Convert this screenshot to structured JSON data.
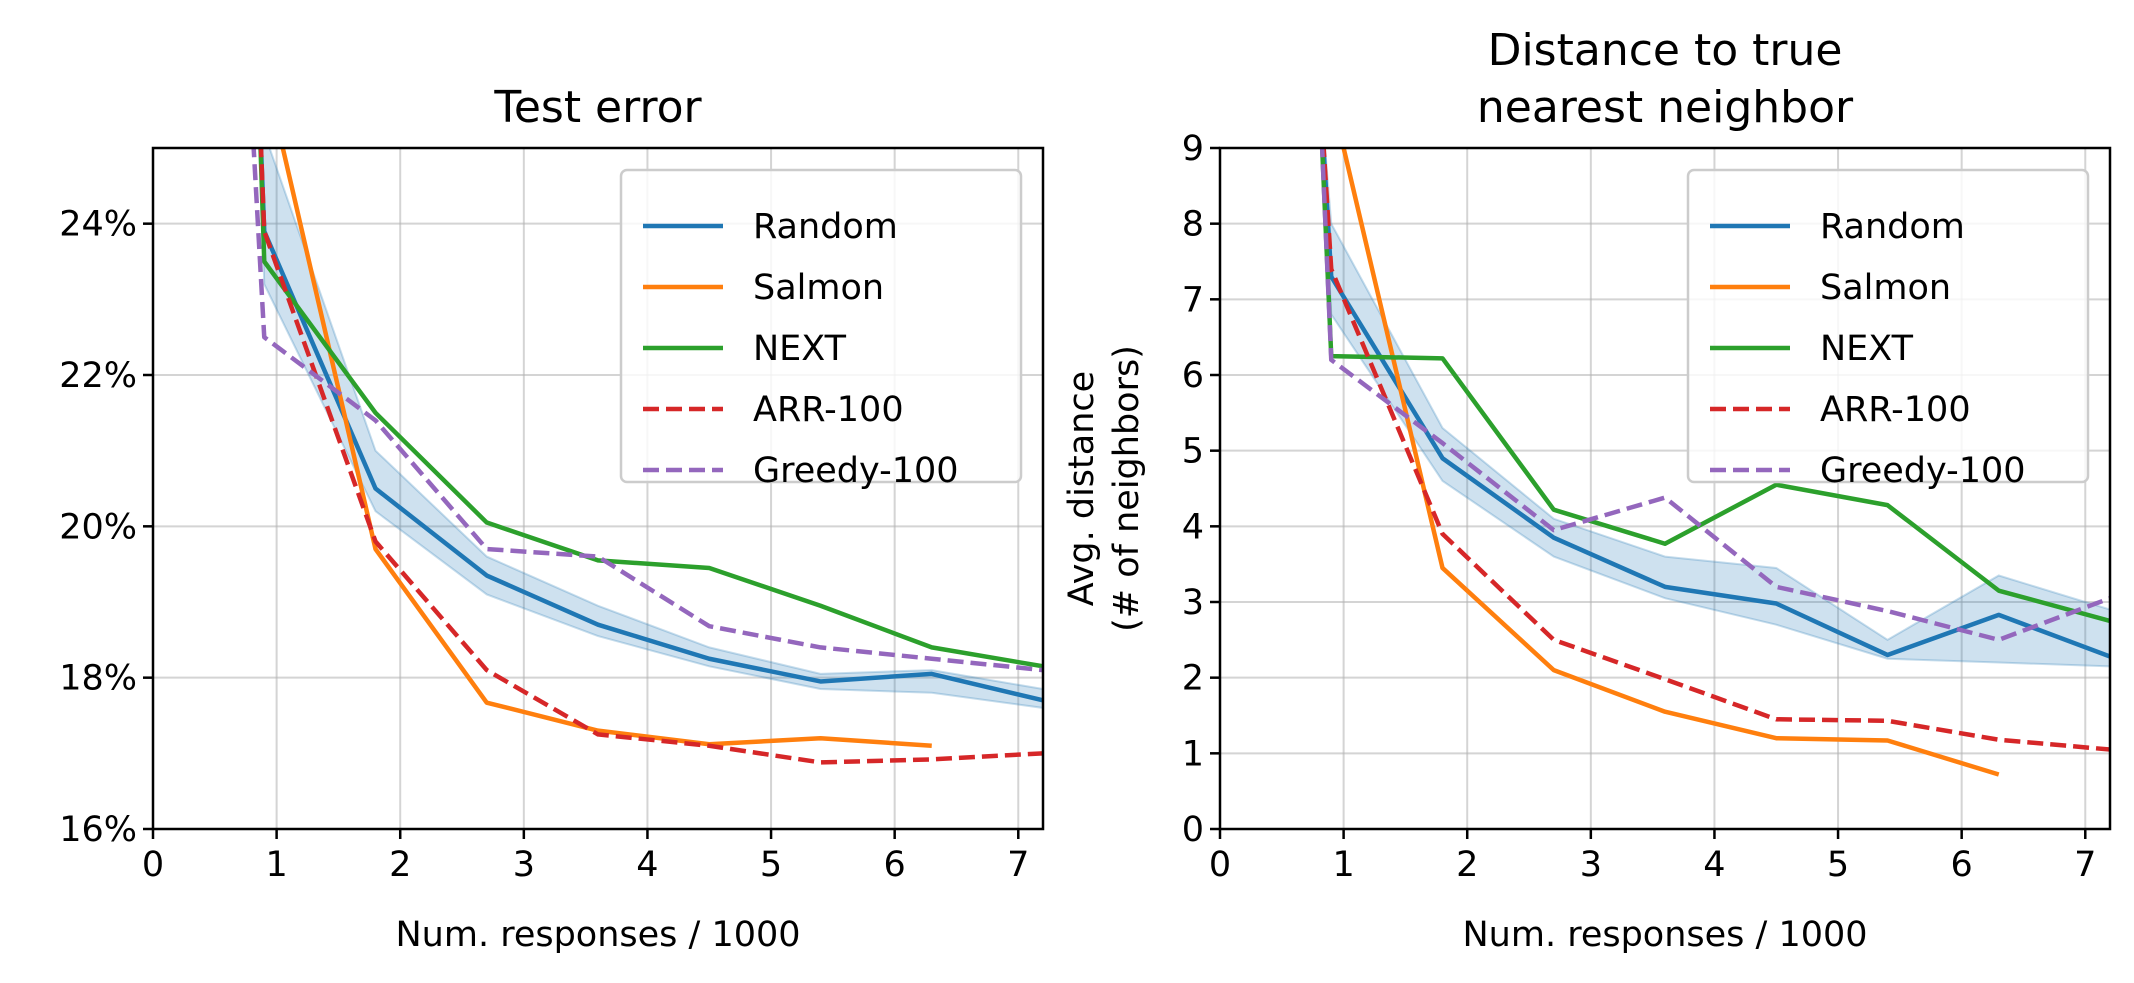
{
  "chart_data": [
    {
      "type": "line",
      "title": "Test error",
      "xlabel": "Num. responses / 1000",
      "ylabel": "",
      "xlim": [
        0,
        7.2
      ],
      "ylim": [
        16,
        25
      ],
      "xticks": [
        0,
        1,
        2,
        3,
        4,
        5,
        6,
        7
      ],
      "yticks": [
        16,
        18,
        20,
        22,
        24
      ],
      "ytick_labels": [
        "16%",
        "18%",
        "20%",
        "22%",
        "24%"
      ],
      "grid": true,
      "legend_position": "top-right",
      "series": [
        {
          "name": "Random",
          "color": "#1f77b4",
          "dash": "solid",
          "x": [
            0.85,
            0.9,
            1.8,
            2.7,
            3.6,
            4.5,
            5.4,
            6.3,
            7.2
          ],
          "y": [
            26.0,
            23.9,
            20.5,
            19.35,
            18.7,
            18.25,
            17.95,
            18.05,
            17.7
          ],
          "band_low": [
            26.0,
            23.2,
            20.2,
            19.1,
            18.55,
            18.15,
            17.85,
            17.8,
            17.6
          ],
          "band_high": [
            26.0,
            25.2,
            21.0,
            19.6,
            18.95,
            18.4,
            18.05,
            18.1,
            17.85
          ]
        },
        {
          "name": "Salmon",
          "color": "#ff7f0e",
          "dash": "solid",
          "x": [
            0.85,
            1.05,
            1.8,
            2.7,
            3.6,
            4.5,
            5.4,
            6.3
          ],
          "y": [
            26.0,
            25.0,
            19.7,
            17.67,
            17.3,
            17.12,
            17.2,
            17.1
          ]
        },
        {
          "name": "NEXT",
          "color": "#2ca02c",
          "dash": "solid",
          "x": [
            0.85,
            0.9,
            1.8,
            2.7,
            3.6,
            4.5,
            5.4,
            6.3,
            7.2
          ],
          "y": [
            26.0,
            23.5,
            21.5,
            20.05,
            19.55,
            19.45,
            18.95,
            18.4,
            18.15
          ]
        },
        {
          "name": "ARR-100",
          "color": "#d62728",
          "dash": "dashed",
          "x": [
            0.85,
            0.9,
            1.8,
            2.7,
            3.6,
            4.5,
            5.4,
            6.3,
            7.2
          ],
          "y": [
            26.0,
            23.9,
            19.8,
            18.1,
            17.25,
            17.1,
            16.88,
            16.92,
            17.0
          ]
        },
        {
          "name": "Greedy-100",
          "color": "#9467bd",
          "dash": "dashed",
          "x": [
            0.78,
            0.9,
            1.8,
            2.7,
            3.6,
            4.5,
            5.4,
            6.3,
            7.2
          ],
          "y": [
            26.0,
            22.5,
            21.4,
            19.7,
            19.6,
            18.68,
            18.4,
            18.25,
            18.1
          ]
        }
      ]
    },
    {
      "type": "line",
      "title": "Distance to true nearest neighbor",
      "title_lines": [
        "Distance to true",
        "nearest neighbor"
      ],
      "xlabel": "Num. responses / 1000",
      "ylabel": "Avg. distance (# of neighbors)",
      "ylabel_lines": [
        "Avg. distance",
        "(# of neighbors)"
      ],
      "xlim": [
        0,
        7.2
      ],
      "ylim": [
        0,
        9
      ],
      "xticks": [
        0,
        1,
        2,
        3,
        4,
        5,
        6,
        7
      ],
      "yticks": [
        0,
        1,
        2,
        3,
        4,
        5,
        6,
        7,
        8,
        9
      ],
      "ytick_labels": [
        "0",
        "1",
        "2",
        "3",
        "4",
        "5",
        "6",
        "7",
        "8",
        "9"
      ],
      "grid": true,
      "legend_position": "top-right",
      "series": [
        {
          "name": "Random",
          "color": "#1f77b4",
          "dash": "solid",
          "x": [
            0.8,
            0.9,
            1.8,
            2.7,
            3.6,
            4.5,
            5.4,
            6.3,
            7.2
          ],
          "y": [
            10.0,
            7.3,
            4.9,
            3.85,
            3.2,
            2.98,
            2.3,
            2.83,
            2.28
          ],
          "band_low": [
            10.0,
            6.8,
            4.6,
            3.6,
            3.05,
            2.7,
            2.25,
            2.2,
            2.15
          ],
          "band_high": [
            10.0,
            8.0,
            5.3,
            4.1,
            3.6,
            3.45,
            2.5,
            3.35,
            2.9
          ]
        },
        {
          "name": "Salmon",
          "color": "#ff7f0e",
          "dash": "solid",
          "x": [
            0.9,
            1.0,
            1.8,
            2.7,
            3.6,
            4.5,
            5.4,
            6.3
          ],
          "y": [
            10.0,
            9.0,
            3.45,
            2.1,
            1.55,
            1.2,
            1.17,
            0.72
          ]
        },
        {
          "name": "NEXT",
          "color": "#2ca02c",
          "dash": "solid",
          "x": [
            0.8,
            0.9,
            1.8,
            2.7,
            3.6,
            4.5,
            5.4,
            6.3,
            7.2
          ],
          "y": [
            10.0,
            6.25,
            6.22,
            4.22,
            3.77,
            4.55,
            4.28,
            3.15,
            2.75
          ]
        },
        {
          "name": "ARR-100",
          "color": "#d62728",
          "dash": "dashed",
          "x": [
            0.8,
            0.9,
            1.8,
            2.7,
            3.6,
            4.5,
            5.4,
            6.3,
            7.2
          ],
          "y": [
            10.0,
            7.4,
            3.9,
            2.5,
            1.98,
            1.45,
            1.43,
            1.18,
            1.05
          ]
        },
        {
          "name": "Greedy-100",
          "color": "#9467bd",
          "dash": "dashed",
          "x": [
            0.8,
            0.9,
            1.8,
            2.7,
            3.6,
            4.5,
            5.4,
            6.3,
            7.2
          ],
          "y": [
            10.0,
            6.2,
            5.1,
            3.95,
            4.38,
            3.2,
            2.88,
            2.5,
            3.05
          ]
        }
      ]
    }
  ]
}
